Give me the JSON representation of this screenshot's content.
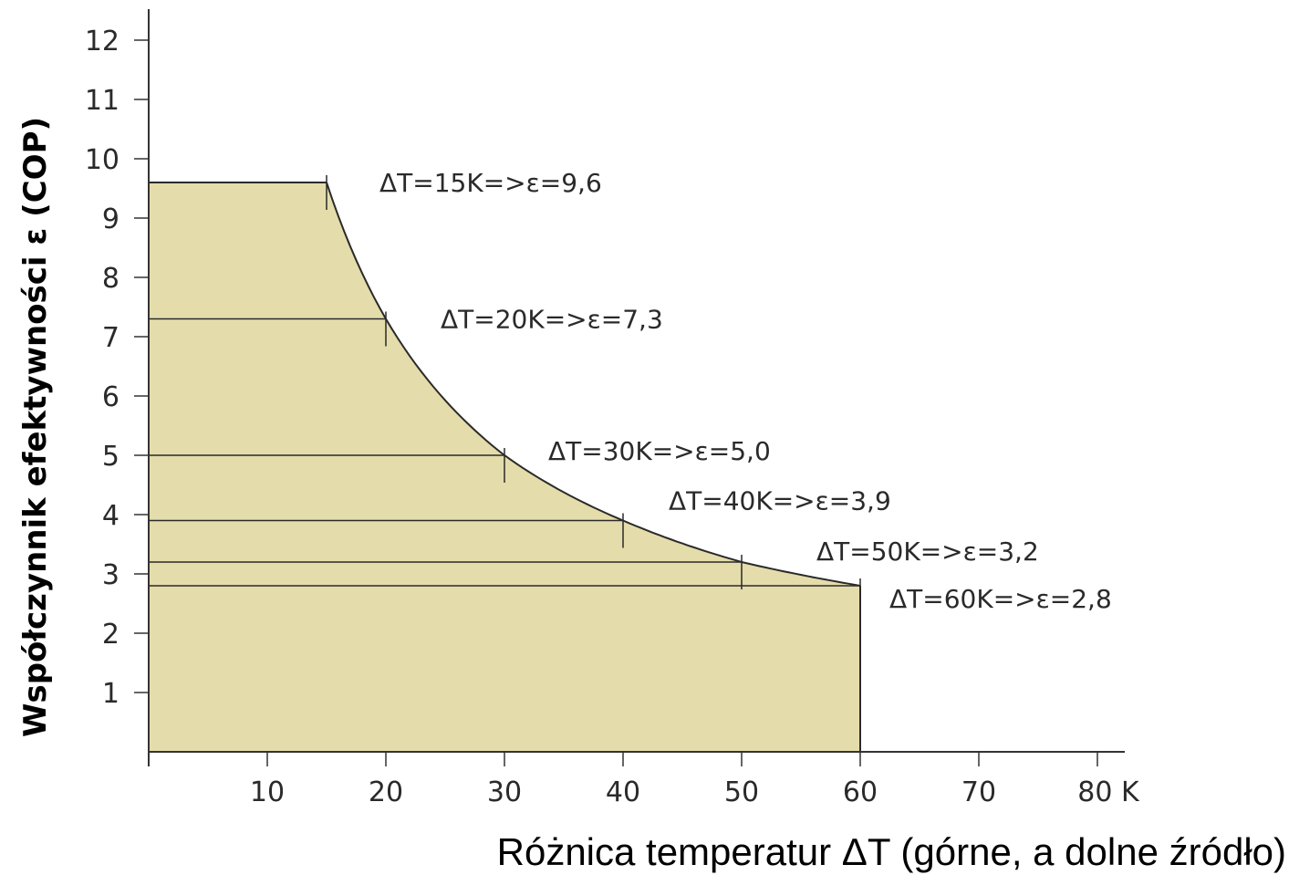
{
  "chart_data": {
    "type": "area",
    "xlabel": "Różnica temperatur ΔT (górne, a dolne źródło)",
    "ylabel": "Współczynnik efektywności ε (COP)",
    "x_unit": "K",
    "xlim": [
      0,
      82
    ],
    "ylim": [
      0,
      12
    ],
    "x_ticks": [
      10,
      20,
      30,
      40,
      50,
      60,
      70,
      80
    ],
    "y_ticks": [
      1,
      2,
      3,
      4,
      5,
      6,
      7,
      8,
      9,
      10,
      11,
      12
    ],
    "grid": false,
    "fill_color": "#e4dcab",
    "line_color": "#2a2a2a",
    "curve": {
      "x": [
        0,
        15,
        20,
        30,
        40,
        50,
        60,
        60
      ],
      "y": [
        9.6,
        9.6,
        7.3,
        5.0,
        3.9,
        3.2,
        2.8,
        0
      ]
    },
    "points": [
      {
        "x": 15,
        "y": 9.6,
        "label": "ΔT=15K=>ε=9,6"
      },
      {
        "x": 20,
        "y": 7.3,
        "label": "ΔT=20K=>ε=7,3"
      },
      {
        "x": 30,
        "y": 5.0,
        "label": "ΔT=30K=>ε=5,0"
      },
      {
        "x": 40,
        "y": 3.9,
        "label": "ΔT=40K=>ε=3,9"
      },
      {
        "x": 50,
        "y": 3.2,
        "label": "ΔT=50K=>ε=3,2"
      },
      {
        "x": 60,
        "y": 2.8,
        "label": "ΔT=60K=>ε=2,8"
      }
    ]
  }
}
